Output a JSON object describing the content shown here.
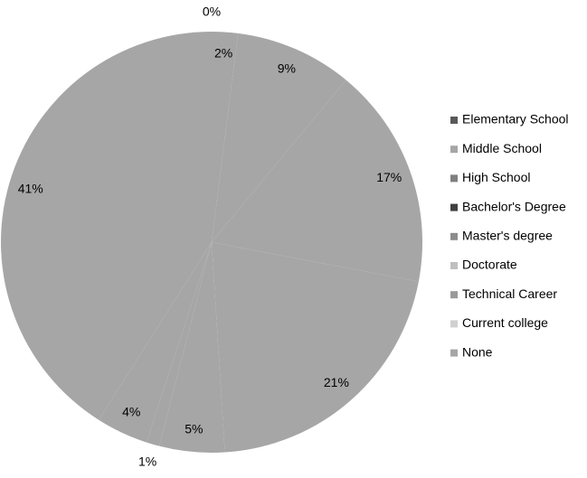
{
  "chart_data": {
    "type": "pie",
    "categories": [
      "Elementary School",
      "Middle School",
      "High School",
      "Bachelor's Degree",
      "Master's degree",
      "Doctorate",
      "Technical Career",
      "Current college",
      "None"
    ],
    "values": [
      0,
      2,
      9,
      17,
      21,
      5,
      1,
      4,
      41
    ],
    "value_labels": [
      "0%",
      "2%",
      "9%",
      "17%",
      "21%",
      "5%",
      "1%",
      "4%",
      "41%"
    ],
    "slice_color": "#a6a6a6",
    "legend_colors": [
      "#595959",
      "#a6a6a6",
      "#7f7f7f",
      "#404040",
      "#8c8c8c",
      "#bfbfbf",
      "#999999",
      "#d0d0d0",
      "#a6a6a6"
    ],
    "legend": "right"
  }
}
